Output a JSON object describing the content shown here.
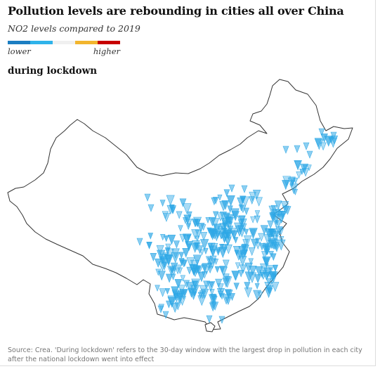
{
  "header": {
    "title": "Pollution levels are rebounding in cities all over China",
    "subtitle": "NO2 levels compared to 2019"
  },
  "legend": {
    "low_label": "lower",
    "high_label": "higher",
    "colors": [
      "#1c7ec2",
      "#2fb3ea",
      "#f0f0f0",
      "#f2b52e",
      "#c70000"
    ]
  },
  "map": {
    "label": "during lockdown",
    "marker_color": "#2da7e6",
    "marker_shape": "downward-triangle",
    "outline_color": "#333333"
  },
  "source": {
    "line1": "Source: Crea. 'During lockdown' refers to the 30-day window with the largest drop in pollution in each city",
    "line2": "after the national lockdown went into effect"
  }
}
